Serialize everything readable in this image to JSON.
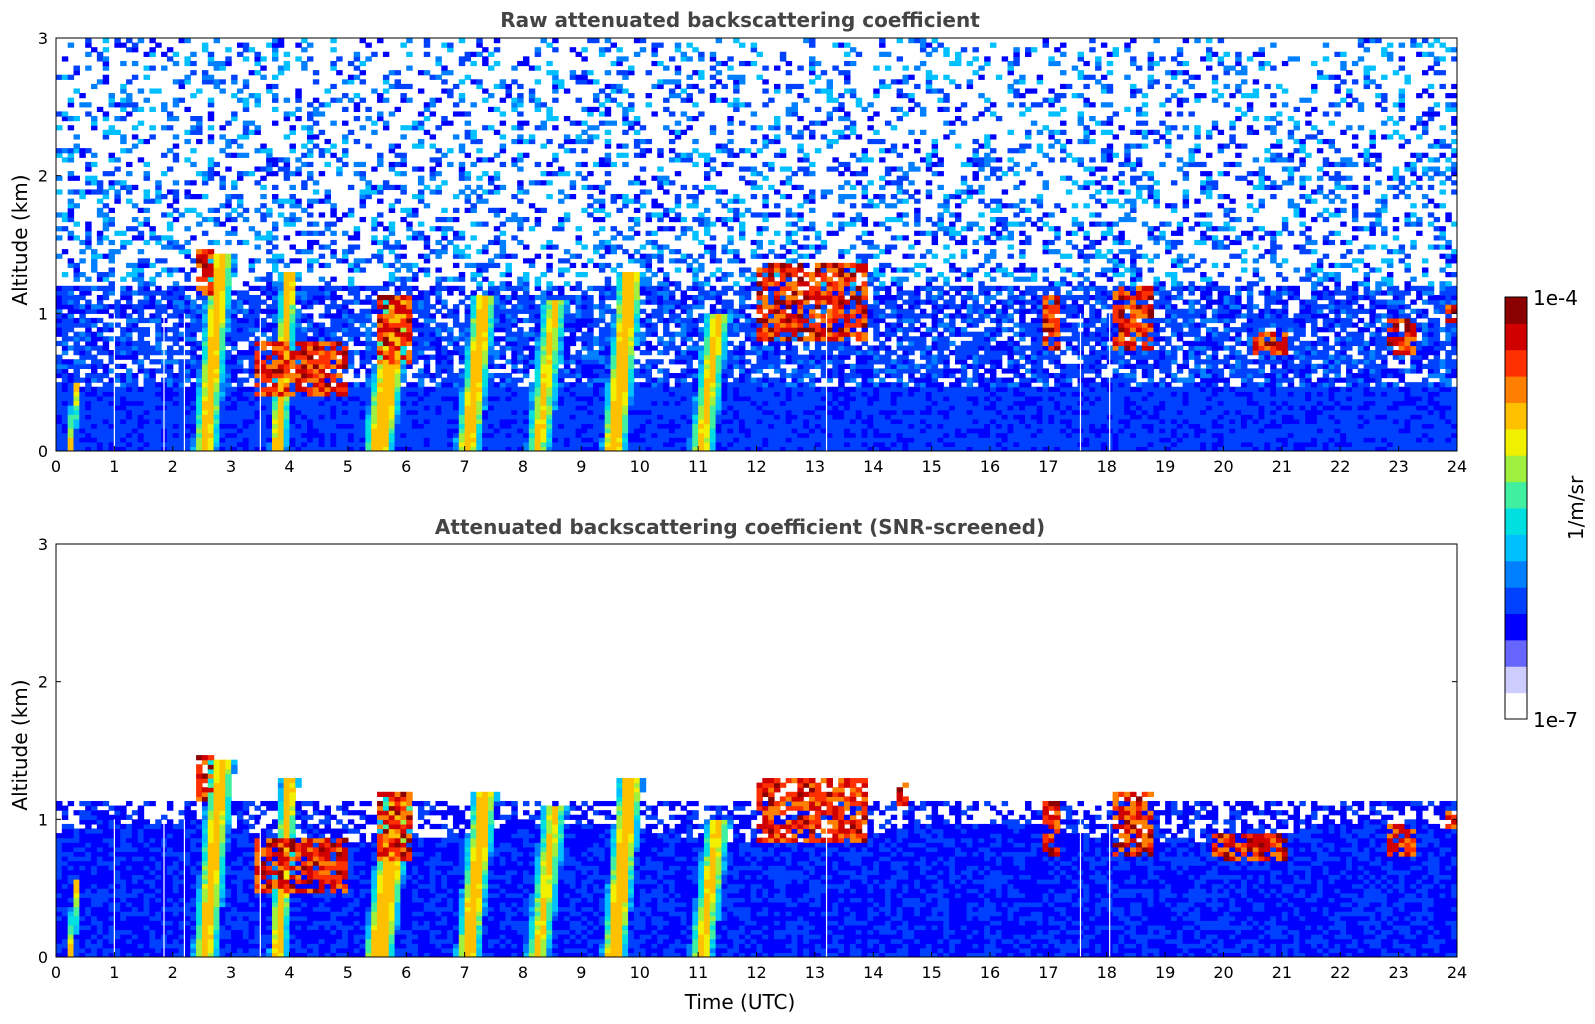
{
  "chart_data": [
    {
      "type": "heatmap",
      "title": "Raw attenuated backscattering coefficient",
      "xlabel": "",
      "ylabel": "Altitude (km)",
      "xlim": [
        0,
        24
      ],
      "ylim": [
        0,
        3
      ],
      "xticks": [
        "0",
        "1",
        "2",
        "3",
        "4",
        "5",
        "6",
        "7",
        "8",
        "9",
        "10",
        "11",
        "12",
        "13",
        "14",
        "15",
        "16",
        "17",
        "18",
        "19",
        "20",
        "21",
        "22",
        "23",
        "24"
      ],
      "yticks": [
        "0",
        "1",
        "2",
        "3"
      ],
      "noise_level": "high",
      "background_top_km": 3.0,
      "layer_top_km": 0.45,
      "plumes": [
        {
          "t": 0.3,
          "top": 0.5,
          "w": 0.15,
          "v": 0.55
        },
        {
          "t": 2.7,
          "top": 1.45,
          "w": 0.5,
          "v": 0.55
        },
        {
          "t": 3.9,
          "top": 1.3,
          "w": 0.35,
          "v": 0.6
        },
        {
          "t": 5.7,
          "top": 1.15,
          "w": 0.6,
          "v": 0.68
        },
        {
          "t": 7.2,
          "top": 1.15,
          "w": 0.5,
          "v": 0.6
        },
        {
          "t": 8.4,
          "top": 1.1,
          "w": 0.5,
          "v": 0.45
        },
        {
          "t": 9.7,
          "top": 1.3,
          "w": 0.5,
          "v": 0.65
        },
        {
          "t": 11.2,
          "top": 1.0,
          "w": 0.5,
          "v": 0.5
        }
      ],
      "strong_layers": [
        {
          "t0": 2.4,
          "t1": 2.7,
          "y0": 1.15,
          "y1": 1.45
        },
        {
          "t0": 3.4,
          "t1": 5.0,
          "y0": 0.4,
          "y1": 0.8
        },
        {
          "t0": 5.5,
          "t1": 6.1,
          "y0": 0.65,
          "y1": 1.15
        },
        {
          "t0": 12.0,
          "t1": 13.9,
          "y0": 0.8,
          "y1": 1.35
        },
        {
          "t0": 16.9,
          "t1": 17.2,
          "y0": 0.75,
          "y1": 1.15
        },
        {
          "t0": 18.1,
          "t1": 18.8,
          "y0": 0.75,
          "y1": 1.2
        },
        {
          "t0": 20.5,
          "t1": 21.1,
          "y0": 0.7,
          "y1": 0.85
        },
        {
          "t0": 22.8,
          "t1": 23.3,
          "y0": 0.7,
          "y1": 0.95
        },
        {
          "t0": 23.8,
          "t1": 24.0,
          "y0": 0.95,
          "y1": 1.05
        }
      ],
      "gaps_utc": [
        1.0,
        1.85,
        2.2,
        3.5,
        13.2,
        17.55,
        18.05
      ]
    },
    {
      "type": "heatmap",
      "title": "Attenuated backscattering coefficient (SNR-screened)",
      "xlabel": "Time (UTC)",
      "ylabel": "Altitude (km)",
      "xlim": [
        0,
        24
      ],
      "ylim": [
        0,
        3
      ],
      "xticks": [
        "0",
        "1",
        "2",
        "3",
        "4",
        "5",
        "6",
        "7",
        "8",
        "9",
        "10",
        "11",
        "12",
        "13",
        "14",
        "15",
        "16",
        "17",
        "18",
        "19",
        "20",
        "21",
        "22",
        "23",
        "24"
      ],
      "yticks": [
        "0",
        "1",
        "2",
        "3"
      ],
      "noise_level": "screened",
      "background_top_km": 1.0,
      "layer_top_km": 0.9,
      "plumes": [
        {
          "t": 0.3,
          "top": 0.55,
          "w": 0.15,
          "v": 0.55
        },
        {
          "t": 2.7,
          "top": 1.45,
          "w": 0.5,
          "v": 0.55
        },
        {
          "t": 3.9,
          "top": 1.3,
          "w": 0.35,
          "v": 0.6
        },
        {
          "t": 5.7,
          "top": 1.2,
          "w": 0.6,
          "v": 0.68
        },
        {
          "t": 7.2,
          "top": 1.2,
          "w": 0.5,
          "v": 0.6
        },
        {
          "t": 8.4,
          "top": 1.1,
          "w": 0.5,
          "v": 0.45
        },
        {
          "t": 9.7,
          "top": 1.3,
          "w": 0.5,
          "v": 0.65
        },
        {
          "t": 11.2,
          "top": 1.0,
          "w": 0.5,
          "v": 0.5
        }
      ],
      "strong_layers": [
        {
          "t0": 2.4,
          "t1": 2.7,
          "y0": 1.15,
          "y1": 1.45
        },
        {
          "t0": 3.4,
          "t1": 5.0,
          "y0": 0.45,
          "y1": 0.85
        },
        {
          "t0": 5.5,
          "t1": 6.1,
          "y0": 0.7,
          "y1": 1.2
        },
        {
          "t0": 12.0,
          "t1": 13.9,
          "y0": 0.85,
          "y1": 1.3
        },
        {
          "t0": 14.4,
          "t1": 14.6,
          "y0": 1.1,
          "y1": 1.25
        },
        {
          "t0": 16.9,
          "t1": 17.2,
          "y0": 0.75,
          "y1": 1.15
        },
        {
          "t0": 18.1,
          "t1": 18.8,
          "y0": 0.75,
          "y1": 1.2
        },
        {
          "t0": 19.8,
          "t1": 21.1,
          "y0": 0.7,
          "y1": 0.9
        },
        {
          "t0": 22.8,
          "t1": 23.3,
          "y0": 0.75,
          "y1": 0.95
        },
        {
          "t0": 23.8,
          "t1": 24.0,
          "y0": 0.95,
          "y1": 1.05
        }
      ],
      "gaps_utc": [
        1.0,
        1.85,
        2.2,
        3.5,
        13.2,
        17.55,
        18.05
      ]
    }
  ],
  "colorbar": {
    "label": "1/m/sr",
    "max_label": "1e-4",
    "min_label": "1e-7",
    "colors": [
      "#ffffff",
      "#ccccff",
      "#6666ff",
      "#0000ff",
      "#0040ff",
      "#0080ff",
      "#00c0ff",
      "#00e0e0",
      "#40f0a0",
      "#a0f040",
      "#f0f000",
      "#ffc000",
      "#ff8000",
      "#ff3000",
      "#d00000",
      "#8b0000"
    ]
  }
}
